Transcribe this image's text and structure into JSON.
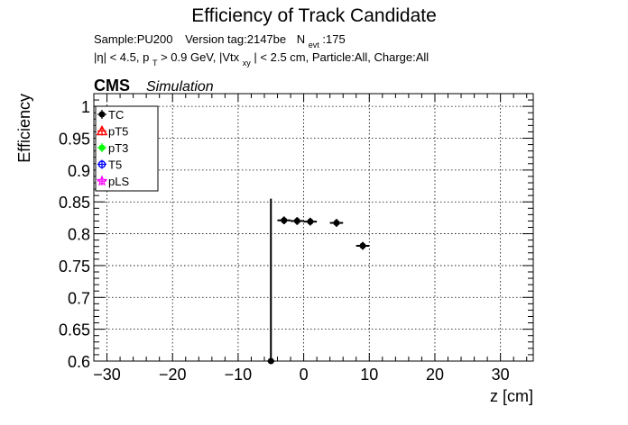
{
  "chart_data": {
    "type": "scatter",
    "title": "Efficiency of Track Candidate",
    "subtitle_line1": {
      "sample": "Sample:PU200",
      "version": "Version tag:2147be",
      "nevt_prefix": "N",
      "nevt_sub": "evt",
      "nevt_value": ":175"
    },
    "subtitle_line2": {
      "part1": "|η| < 4.5, p",
      "part1_sub": "T",
      "part2": " > 0.9 GeV, |Vtx",
      "part2_sub": "xy",
      "part3": "| < 2.5 cm, Particle:All, Charge:All"
    },
    "cms_label": "CMS",
    "cms_sublabel": "Simulation",
    "xlabel": "z [cm]",
    "ylabel": "Efficiency",
    "xlim": [
      -32,
      35
    ],
    "ylim": [
      0.6,
      1.02
    ],
    "xticks": [
      -30,
      -20,
      -10,
      0,
      10,
      20,
      30
    ],
    "xtick_labels": [
      "−30",
      "−20",
      "−10",
      "0",
      "10",
      "20",
      "30"
    ],
    "yticks": [
      0.6,
      0.65,
      0.7,
      0.75,
      0.8,
      0.85,
      0.9,
      0.95,
      1.0
    ],
    "ytick_labels": [
      "0.6",
      "0.65",
      "0.7",
      "0.75",
      "0.8",
      "0.85",
      "0.9",
      "0.95",
      "1"
    ],
    "grid": true,
    "legend_position": "top-left",
    "legend": [
      {
        "label": "TC",
        "color": "#000000",
        "marker": "filled-circle"
      },
      {
        "label": "pT5",
        "color": "#ff0000",
        "marker": "open-triangle"
      },
      {
        "label": "pT3",
        "color": "#00ff00",
        "marker": "filled-circle"
      },
      {
        "label": "T5",
        "color": "#0000ff",
        "marker": "open-circle"
      },
      {
        "label": "pLS",
        "color": "#ff00ff",
        "marker": "open-star"
      }
    ],
    "series": [
      {
        "name": "TC",
        "color": "#000000",
        "points": [
          {
            "x": -5.0,
            "y": 0.6,
            "xerr": 0.5,
            "yerr_low": 0.0,
            "yerr_high": 0.255
          },
          {
            "x": -3.0,
            "y": 0.821,
            "xerr": 1.0,
            "yerr_low": 0.006,
            "yerr_high": 0.006
          },
          {
            "x": -1.0,
            "y": 0.82,
            "xerr": 1.0,
            "yerr_low": 0.006,
            "yerr_high": 0.006
          },
          {
            "x": 1.0,
            "y": 0.819,
            "xerr": 1.0,
            "yerr_low": 0.006,
            "yerr_high": 0.006
          },
          {
            "x": 5.0,
            "y": 0.817,
            "xerr": 1.0,
            "yerr_low": 0.006,
            "yerr_high": 0.006
          },
          {
            "x": 9.0,
            "y": 0.781,
            "xerr": 1.0,
            "yerr_low": 0.006,
            "yerr_high": 0.006
          }
        ]
      }
    ]
  }
}
